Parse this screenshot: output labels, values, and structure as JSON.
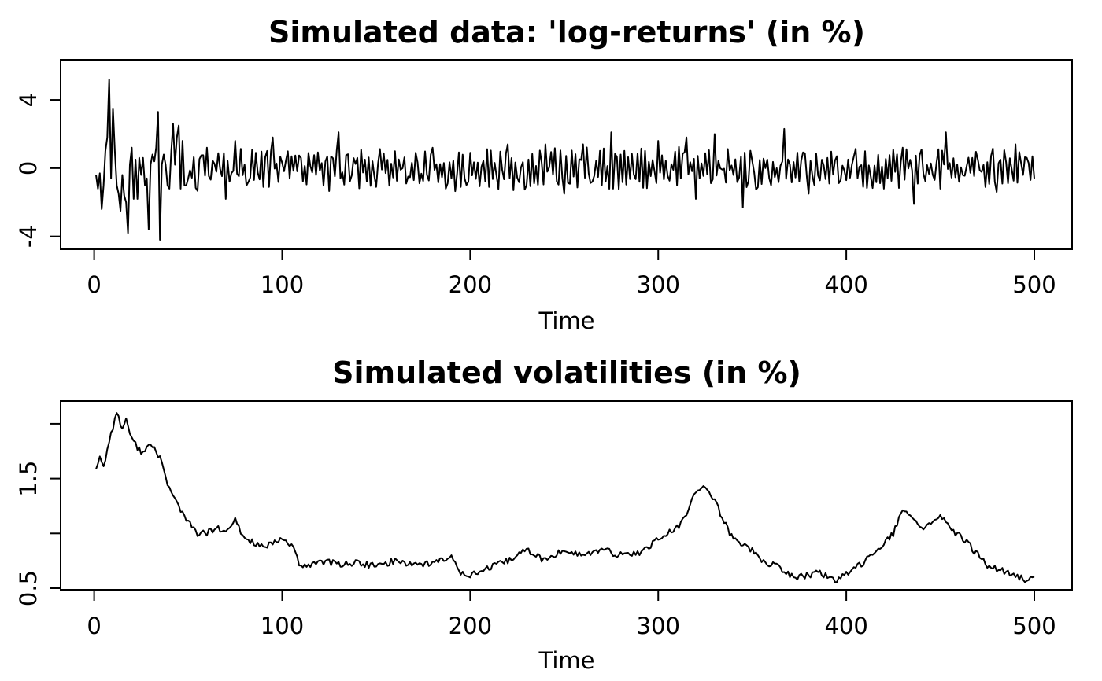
{
  "chart_data": [
    {
      "type": "line",
      "title": "Simulated data: 'log-returns' (in %)",
      "xlabel": "Time",
      "ylabel": "",
      "xlim": [
        1,
        500
      ],
      "ylim": [
        -4.2,
        5.8
      ],
      "xticks": [
        0,
        100,
        200,
        300,
        400,
        500
      ],
      "xtick_labels": [
        "0",
        "100",
        "200",
        "300",
        "400",
        "500"
      ],
      "yticks": [
        -4,
        0,
        4
      ],
      "ytick_labels": [
        "-4",
        "0",
        "4"
      ],
      "grid": false,
      "series": [
        {
          "anchors_x": [
            1,
            2,
            3,
            4,
            5,
            6,
            7,
            8,
            9,
            10,
            11,
            12,
            13,
            14,
            15,
            16,
            17,
            18,
            19,
            20,
            21,
            22,
            23,
            24,
            25,
            26,
            27,
            28,
            29,
            30,
            31,
            32,
            33,
            34,
            35,
            36,
            37,
            38,
            39,
            40,
            41,
            42,
            43,
            44,
            45,
            46,
            47,
            48,
            49,
            50,
            60,
            70,
            75,
            80,
            90,
            95,
            100,
            110,
            130,
            140,
            150,
            160,
            170,
            180,
            190,
            200,
            210,
            220,
            230,
            240,
            250,
            260,
            270,
            275,
            280,
            290,
            300,
            310,
            315,
            320,
            330,
            340,
            345,
            350,
            360,
            367,
            370,
            380,
            390,
            400,
            410,
            420,
            430,
            436,
            440,
            450,
            453,
            460,
            470,
            480,
            490,
            494,
            497,
            500
          ],
          "anchors_y": [
            -0.4,
            -1.2,
            -0.3,
            -2.4,
            -1.0,
            1.0,
            1.8,
            5.2,
            -0.6,
            3.5,
            1.0,
            -1.0,
            -1.5,
            -2.5,
            -0.4,
            -1.6,
            -2.0,
            -3.8,
            0.2,
            1.2,
            -1.8,
            0.5,
            -1.8,
            0.6,
            -0.4,
            0.6,
            -1.0,
            -0.6,
            -3.6,
            0.2,
            0.8,
            0.4,
            1.2,
            3.3,
            -4.2,
            0.2,
            0.8,
            0.2,
            -1.0,
            -1.2,
            1.0,
            2.6,
            0.2,
            1.8,
            2.5,
            -1.2,
            1.6,
            -1.0,
            -1.0,
            -0.6,
            1.2,
            -1.8,
            1.6,
            0.2,
            -1.1,
            1.8,
            0.3,
            0.6,
            2.1,
            0.6,
            -1.1,
            1.0,
            -0.7,
            1.2,
            -0.6,
            0.9,
            -1.1,
            1.4,
            -1.0,
            1.4,
            -1.5,
            1.4,
            -1.0,
            2.1,
            0.8,
            -0.8,
            1.6,
            -1.0,
            1.8,
            -1.8,
            2.0,
            -0.4,
            -2.3,
            0.4,
            -1.0,
            2.3,
            0.2,
            -1.5,
            0.6,
            -0.7,
            1.0,
            -1.2,
            1.2,
            -2.1,
            1.1,
            -1.2,
            2.1,
            -0.8,
            0.5,
            -1.4,
            1.4,
            -0.4,
            0.3,
            -0.6
          ]
        }
      ]
    },
    {
      "type": "line",
      "title": "Simulated volatilities (in %)",
      "xlabel": "Time",
      "ylabel": "",
      "xlim": [
        1,
        500
      ],
      "ylim": [
        0.5,
        2.15
      ],
      "xticks": [
        0,
        100,
        200,
        300,
        400,
        500
      ],
      "xtick_labels": [
        "0",
        "100",
        "200",
        "300",
        "400",
        "500"
      ],
      "yticks": [
        0.5,
        1.0,
        1.5,
        2.0
      ],
      "ytick_labels": [
        "0.5",
        "",
        "1.5",
        ""
      ],
      "grid": false,
      "series": [
        {
          "x": [
            1,
            3,
            5,
            8,
            12,
            15,
            17,
            20,
            25,
            30,
            35,
            40,
            45,
            50,
            55,
            60,
            65,
            70,
            75,
            80,
            85,
            90,
            95,
            100,
            105,
            110,
            120,
            130,
            140,
            150,
            160,
            170,
            180,
            190,
            195,
            200,
            210,
            220,
            230,
            240,
            250,
            260,
            270,
            280,
            290,
            300,
            305,
            310,
            315,
            320,
            325,
            330,
            335,
            340,
            345,
            350,
            355,
            360,
            365,
            370,
            375,
            380,
            385,
            390,
            395,
            400,
            405,
            410,
            415,
            420,
            425,
            430,
            435,
            440,
            445,
            450,
            455,
            460,
            465,
            470,
            475,
            480,
            485,
            490,
            495,
            500
          ],
          "y": [
            1.6,
            1.7,
            1.6,
            1.85,
            2.1,
            1.95,
            2.05,
            1.85,
            1.75,
            1.8,
            1.7,
            1.4,
            1.25,
            1.1,
            1.0,
            1.0,
            1.05,
            1.0,
            1.12,
            0.95,
            0.92,
            0.87,
            0.9,
            0.95,
            0.9,
            0.68,
            0.75,
            0.72,
            0.73,
            0.7,
            0.75,
            0.72,
            0.73,
            0.78,
            0.65,
            0.62,
            0.68,
            0.75,
            0.85,
            0.75,
            0.85,
            0.8,
            0.85,
            0.8,
            0.82,
            0.95,
            1.0,
            1.05,
            1.15,
            1.4,
            1.42,
            1.3,
            1.1,
            0.95,
            0.9,
            0.85,
            0.75,
            0.72,
            0.68,
            0.62,
            0.6,
            0.62,
            0.65,
            0.6,
            0.58,
            0.62,
            0.68,
            0.75,
            0.85,
            0.9,
            1.0,
            1.2,
            1.15,
            1.05,
            1.1,
            1.15,
            1.05,
            0.98,
            0.9,
            0.8,
            0.7,
            0.68,
            0.65,
            0.6,
            0.58,
            0.6
          ]
        }
      ]
    }
  ]
}
